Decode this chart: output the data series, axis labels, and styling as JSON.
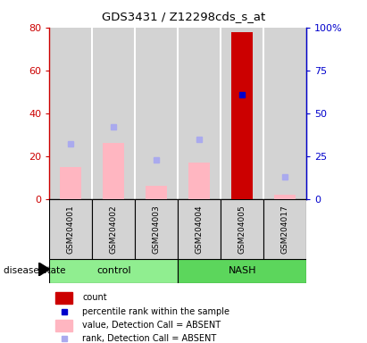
{
  "title": "GDS3431 / Z12298cds_s_at",
  "samples": [
    "GSM204001",
    "GSM204002",
    "GSM204003",
    "GSM204004",
    "GSM204005",
    "GSM204017"
  ],
  "value_bars": [
    15,
    26,
    6,
    17,
    78,
    2
  ],
  "rank_dots": [
    32,
    42,
    23,
    35,
    61,
    13
  ],
  "bar_color_absent": "#FFB6C1",
  "bar_color_present": "#CC0000",
  "dot_color_absent": "#AAAAEE",
  "dot_color_present": "#0000CC",
  "ylim_left": [
    0,
    80
  ],
  "ylim_right": [
    0,
    100
  ],
  "yticks_left": [
    0,
    20,
    40,
    60,
    80
  ],
  "ytick_labels_left": [
    "0",
    "20",
    "40",
    "60",
    "80"
  ],
  "yticks_right": [
    0,
    25,
    50,
    75,
    100
  ],
  "ytick_labels_right": [
    "0",
    "25",
    "50",
    "75",
    "100%"
  ],
  "left_axis_color": "#CC0000",
  "right_axis_color": "#0000CC",
  "present_samples": [
    4
  ],
  "ctrl_color": "#90EE90",
  "nash_color": "#5CD65C",
  "disease_label": "disease state",
  "legend_items": [
    {
      "type": "rect",
      "color": "#CC0000",
      "label": "count"
    },
    {
      "type": "square",
      "color": "#0000CC",
      "label": "percentile rank within the sample"
    },
    {
      "type": "rect",
      "color": "#FFB6C1",
      "label": "value, Detection Call = ABSENT"
    },
    {
      "type": "square",
      "color": "#AAAAEE",
      "label": "rank, Detection Call = ABSENT"
    }
  ]
}
